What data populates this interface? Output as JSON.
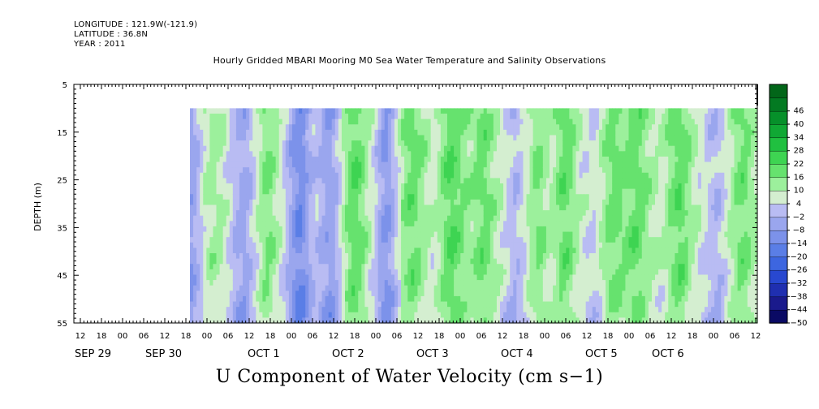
{
  "header": {
    "longitude": "LONGITUDE : 121.9W(-121.9)",
    "latitude": "LATITUDE : 36.8N",
    "year": "YEAR : 2011"
  },
  "chart_data": {
    "type": "heatmap",
    "title": "Hourly Gridded MBARI Mooring M0 Sea Water Temperature and Salinity Observations",
    "variable_label": "U Component of Water Velocity (cm s−1)",
    "ylabel": "DEPTH (m)",
    "ylim": [
      5,
      55
    ],
    "y_inverted": true,
    "y_ticks": [
      5,
      15,
      25,
      35,
      45,
      55
    ],
    "x_hour_ticks": [
      "12",
      "18",
      "00",
      "06",
      "12",
      "18",
      "00",
      "06",
      "12",
      "18",
      "00",
      "06",
      "12",
      "18",
      "00",
      "06",
      "12",
      "18",
      "00",
      "06",
      "12",
      "18",
      "00",
      "06",
      "12",
      "18",
      "00",
      "06",
      "12",
      "18",
      "00",
      "06",
      "12"
    ],
    "x_date_labels": [
      "SEP 29",
      "SEP 30",
      "OCT  1",
      "OCT  2",
      "OCT  3",
      "OCT  4",
      "OCT  5",
      "OCT  6"
    ],
    "colorbar": {
      "levels": [
        -50,
        -44,
        -38,
        -32,
        -26,
        -20,
        -14,
        -8,
        -2,
        4,
        10,
        16,
        22,
        28,
        34,
        40,
        46
      ],
      "colors": [
        "#0a0a64",
        "#1a1a8c",
        "#1f2fb0",
        "#2848d0",
        "#3d66e0",
        "#5a7ee6",
        "#7c92ea",
        "#9aa6ee",
        "#b9bcf3",
        "#d4eed0",
        "#9cf09c",
        "#66e26e",
        "#3ed452",
        "#20c040",
        "#10a834",
        "#06902a",
        "#037a22",
        "#026619"
      ]
    },
    "data_start_depth": 10,
    "u_series": [
      {
        "name": "",
        "profile": [
          -12,
          -9,
          -6,
          -2,
          2,
          4,
          6,
          6,
          5,
          4,
          2,
          0,
          -3,
          -6,
          -8,
          -9,
          -10,
          -8,
          -5,
          -2,
          2,
          6,
          9,
          10,
          9,
          7,
          4,
          1,
          -2,
          -6,
          -10,
          -14,
          -17,
          -18,
          -16,
          -12,
          -8,
          -6,
          -5,
          -7,
          -9,
          -11,
          -12,
          -10,
          -6,
          -2,
          3,
          8,
          12,
          14,
          14,
          12,
          9,
          6,
          3,
          0,
          -4,
          -8,
          -12,
          -14,
          -12,
          -8,
          -3,
          2,
          7,
          10,
          12,
          13,
          12,
          10,
          8,
          6,
          4,
          2,
          3,
          6,
          9,
          12,
          14,
          15,
          14,
          12,
          10,
          9,
          8,
          8,
          9,
          11,
          12,
          12,
          10,
          8,
          6,
          4,
          2,
          0,
          -2,
          -4,
          -6,
          -5,
          -3,
          0,
          3,
          6,
          9,
          10,
          9,
          7,
          5,
          4,
          6,
          9,
          12,
          13,
          12,
          10,
          7,
          4,
          2,
          1,
          0,
          -1,
          -2,
          0,
          3,
          6,
          9,
          11,
          12,
          12,
          11,
          10,
          11,
          12,
          13,
          13,
          12,
          10,
          8,
          6,
          5,
          4,
          3,
          4,
          6,
          9,
          11,
          13,
          14,
          13,
          11,
          8,
          5,
          3,
          1,
          0,
          -2,
          -4,
          -5,
          -6,
          -5,
          -3,
          0,
          3,
          6,
          9,
          11,
          12,
          11,
          9,
          6,
          4
        ]
      }
    ]
  }
}
